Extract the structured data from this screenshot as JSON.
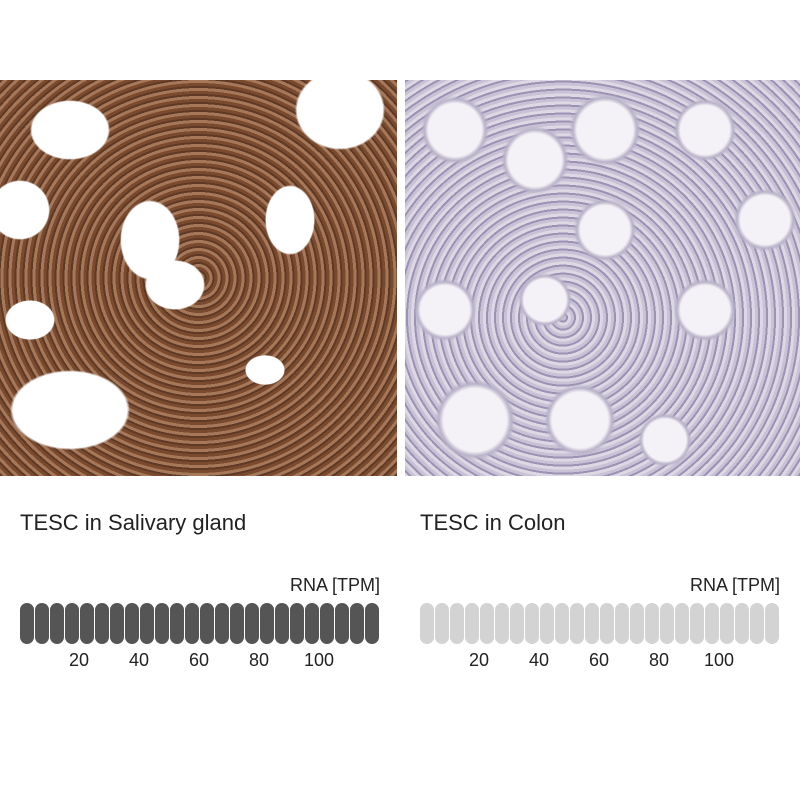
{
  "panels": [
    {
      "title": "TESC in Salivary gland",
      "rna_label": "RNA [TPM]",
      "filled_bars": 24,
      "total_bars": 24,
      "fill_color": "#555555",
      "empty_color": "#d3d3d3",
      "tick_labels": [
        "20",
        "40",
        "60",
        "80",
        "100"
      ]
    },
    {
      "title": "TESC in Colon",
      "rna_label": "RNA [TPM]",
      "filled_bars": 0,
      "total_bars": 24,
      "fill_color": "#555555",
      "empty_color": "#d3d3d3",
      "tick_labels": [
        "20",
        "40",
        "60",
        "80",
        "100"
      ]
    }
  ]
}
